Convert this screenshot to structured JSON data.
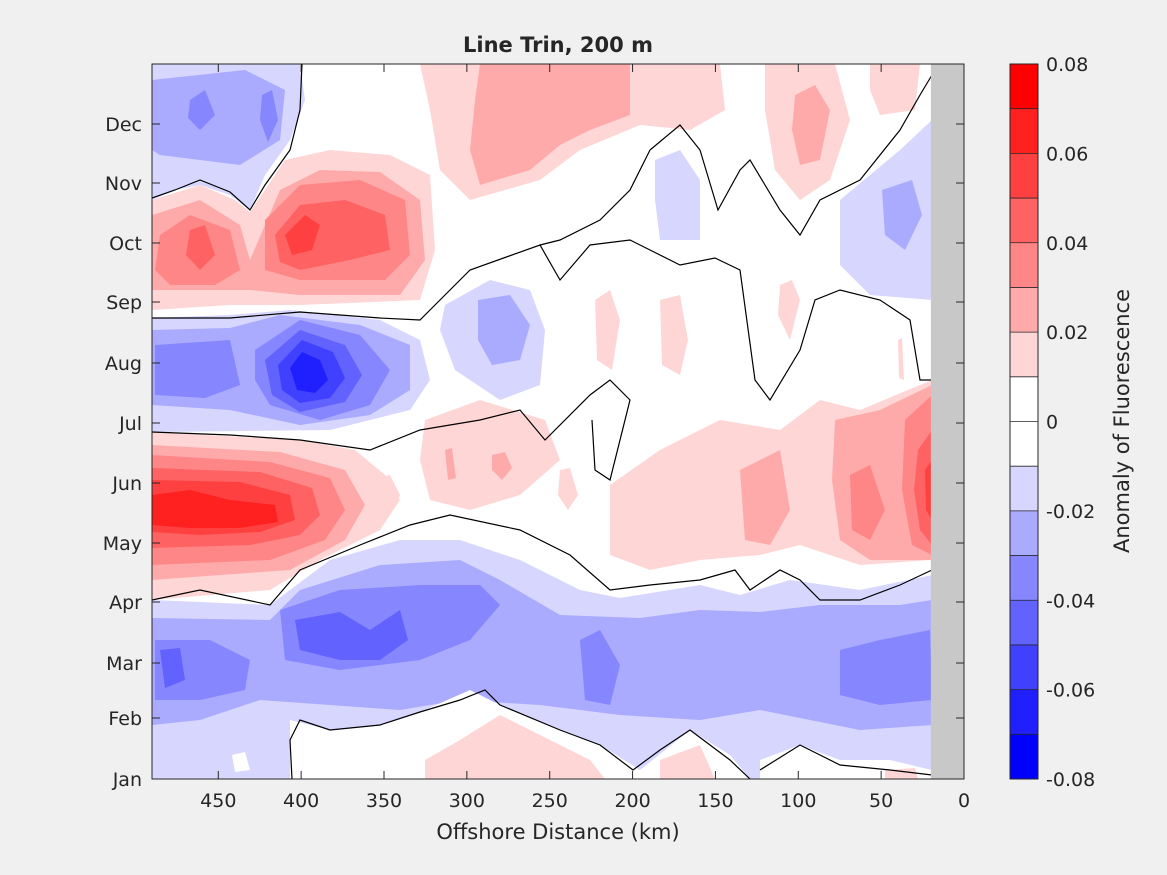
{
  "chart_data": {
    "type": "heatmap",
    "title": "Line Trin, 200 m",
    "xlabel": "Offshore Distance (km)",
    "ylabel": "",
    "xlim": [
      490,
      0
    ],
    "x_reversed": true,
    "x_ticks": [
      450,
      400,
      350,
      300,
      250,
      200,
      150,
      100,
      50,
      0
    ],
    "y_ticks": [
      "Jan",
      "Feb",
      "Mar",
      "Apr",
      "May",
      "Jun",
      "Jul",
      "Aug",
      "Sep",
      "Oct",
      "Nov",
      "Dec"
    ],
    "no_data_region_x": [
      20,
      0
    ],
    "no_data_color": "#c8c8c8",
    "zero_contour_color": "#000000",
    "colorbar": {
      "label": "Anomaly of Fluorescence",
      "range": [
        -0.08,
        0.08
      ],
      "tick_values": [
        0.08,
        0.06,
        0.04,
        0.02,
        0,
        -0.02,
        -0.04,
        -0.06,
        -0.08
      ],
      "tick_labels": [
        "0.08",
        "0.06",
        "0.04",
        "0.02",
        "0",
        "-0.02",
        "-0.04",
        "-0.06",
        "-0.08"
      ],
      "levels": [
        "#ff0000",
        "#ff2020",
        "#ff4040",
        "#ff6262",
        "#ff8686",
        "#ffaaaa",
        "#ffd6d6",
        "#ffffff",
        "#ffffff",
        "#d6d6ff",
        "#aaaaff",
        "#8686ff",
        "#6262ff",
        "#4040ff",
        "#2020ff",
        "#0000ff"
      ]
    },
    "features": [
      {
        "label": "blue",
        "x": 455,
        "month": 11.9,
        "value": -0.02
      },
      {
        "label": "blue",
        "x": 410,
        "month": 11.8,
        "value": -0.02
      },
      {
        "label": "pink",
        "x": 240,
        "month": 11.6,
        "value": 0.02
      },
      {
        "label": "pink",
        "x": 100,
        "month": 11.5,
        "value": 0.02
      },
      {
        "label": "blue",
        "x": 50,
        "month": 10.3,
        "value": -0.02
      },
      {
        "label": "red",
        "x": 375,
        "month": 9.9,
        "value": 0.04
      },
      {
        "label": "red",
        "x": 455,
        "month": 9.8,
        "value": 0.02
      },
      {
        "label": "blue",
        "x": 160,
        "month": 10.2,
        "value": -0.01
      },
      {
        "label": "blue",
        "x": 400,
        "month": 7.8,
        "value": -0.07
      },
      {
        "label": "blue",
        "x": 280,
        "month": 8.0,
        "value": -0.02
      },
      {
        "label": "pink",
        "x": 210,
        "month": 7.5,
        "value": 0.01
      },
      {
        "label": "red",
        "x": 455,
        "month": 5.6,
        "value": 0.06
      },
      {
        "label": "pink",
        "x": 120,
        "month": 5.2,
        "value": 0.01
      },
      {
        "label": "red",
        "x": 40,
        "month": 5.5,
        "value": 0.04
      },
      {
        "label": "red",
        "x": 22,
        "month": 5.9,
        "value": 0.06
      },
      {
        "label": "blue",
        "x": 360,
        "month": 3.0,
        "value": -0.04
      },
      {
        "label": "blue",
        "x": 480,
        "month": 2.8,
        "value": -0.03
      },
      {
        "label": "blue",
        "x": 200,
        "month": 2.6,
        "value": -0.03
      },
      {
        "label": "blue",
        "x": 60,
        "month": 2.7,
        "value": -0.03
      },
      {
        "label": "pink",
        "x": 270,
        "month": 0.7,
        "value": 0.01
      },
      {
        "label": "pink",
        "x": 30,
        "month": 0.3,
        "value": 0.01
      }
    ]
  }
}
